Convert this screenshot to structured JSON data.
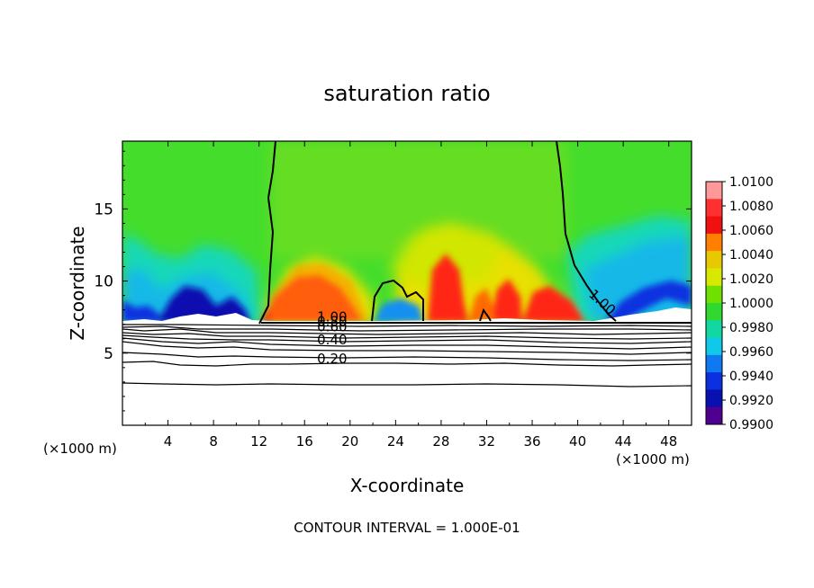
{
  "chart_data": {
    "type": "heatmap",
    "title": "saturation ratio",
    "xlabel": "X-coordinate",
    "ylabel": "Z-coordinate",
    "x_unit_label": "(×1000 m)",
    "x_unit_label_right": "(×1000 m)",
    "xlim": [
      0,
      50
    ],
    "ylim": [
      0,
      19.7
    ],
    "x_ticks": [
      {
        "value": 4,
        "label": "4"
      },
      {
        "value": 8,
        "label": "8"
      },
      {
        "value": 12,
        "label": "12"
      },
      {
        "value": 16,
        "label": "16"
      },
      {
        "value": 20,
        "label": "20"
      },
      {
        "value": 24,
        "label": "24"
      },
      {
        "value": 28,
        "label": "28"
      },
      {
        "value": 32,
        "label": "32"
      },
      {
        "value": 36,
        "label": "36"
      },
      {
        "value": 40,
        "label": "40"
      },
      {
        "value": 44,
        "label": "44"
      },
      {
        "value": 48,
        "label": "48"
      }
    ],
    "y_ticks": [
      {
        "value": 5,
        "label": "5"
      },
      {
        "value": 10,
        "label": "10"
      },
      {
        "value": 15,
        "label": "15"
      }
    ],
    "colorbar": {
      "min": 0.99,
      "max": 1.01,
      "labels": [
        "1.0100",
        "1.0080",
        "1.0060",
        "1.0040",
        "1.0020",
        "1.0000",
        "0.9980",
        "0.9960",
        "0.9940",
        "0.9920",
        "0.9900"
      ],
      "colors": [
        "#ff9999",
        "#ff3030",
        "#f01010",
        "#ff8000",
        "#e8c800",
        "#d8e800",
        "#70e000",
        "#30d830",
        "#10d8a0",
        "#10c8e8",
        "#1078f0",
        "#0a30e0",
        "#0810b0",
        "#500090"
      ]
    },
    "contour_labels": [
      {
        "text": "1.00",
        "x": 40.9,
        "y": 9.0
      },
      {
        "text": "1.00",
        "x": 17.1,
        "y": 7.2
      },
      {
        "text": "0.80",
        "x": 17.1,
        "y": 6.9
      },
      {
        "text": "0.60",
        "x": 17.1,
        "y": 6.5
      },
      {
        "text": "0.40",
        "x": 17.1,
        "y": 5.6
      },
      {
        "text": "0.20",
        "x": 17.1,
        "y": 4.3
      }
    ],
    "footnote": "CONTOUR INTERVAL = 1.000E-01"
  }
}
